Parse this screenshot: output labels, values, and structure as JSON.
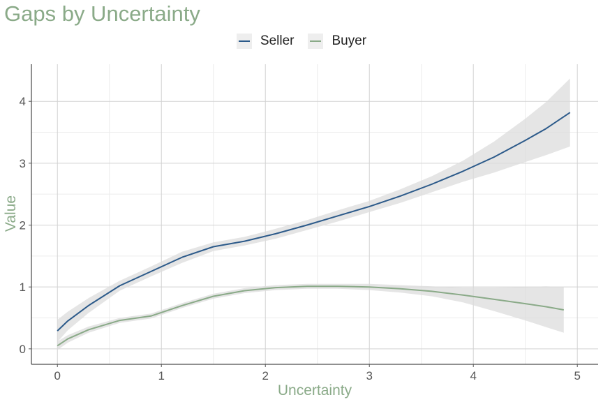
{
  "chart_data": {
    "type": "line",
    "title": "Gaps by Uncertainty",
    "xlabel": "Uncertainty",
    "ylabel": "Value",
    "xlim": [
      -0.25,
      5.2
    ],
    "ylim": [
      -0.25,
      4.6
    ],
    "xticks": [
      0,
      1,
      2,
      3,
      4,
      5
    ],
    "yticks": [
      0,
      1,
      2,
      3,
      4
    ],
    "grid": true,
    "legend_position": "top-center",
    "colors": {
      "title": "#8aaa88",
      "axis_title": "#8aaa88",
      "ribbon": "#dcdcdc"
    },
    "series": [
      {
        "name": "Seller",
        "color": "#2c5a8a",
        "x": [
          0.0,
          0.1,
          0.3,
          0.6,
          0.9,
          1.2,
          1.5,
          1.8,
          2.1,
          2.4,
          2.7,
          3.0,
          3.3,
          3.6,
          3.9,
          4.2,
          4.5,
          4.7,
          4.93
        ],
        "y": [
          0.29,
          0.45,
          0.7,
          1.02,
          1.25,
          1.48,
          1.65,
          1.74,
          1.86,
          2.0,
          2.15,
          2.3,
          2.47,
          2.66,
          2.87,
          3.1,
          3.37,
          3.56,
          3.82
        ],
        "lower": [
          0.11,
          0.3,
          0.58,
          0.94,
          1.17,
          1.39,
          1.58,
          1.67,
          1.78,
          1.92,
          2.06,
          2.21,
          2.36,
          2.53,
          2.7,
          2.85,
          3.02,
          3.13,
          3.27
        ],
        "upper": [
          0.47,
          0.6,
          0.82,
          1.1,
          1.33,
          1.57,
          1.72,
          1.81,
          1.94,
          2.08,
          2.24,
          2.39,
          2.58,
          2.79,
          3.04,
          3.35,
          3.72,
          3.99,
          4.37
        ]
      },
      {
        "name": "Buyer",
        "color": "#8aaa88",
        "x": [
          0.0,
          0.1,
          0.3,
          0.6,
          0.9,
          1.2,
          1.5,
          1.8,
          2.1,
          2.4,
          2.7,
          3.0,
          3.3,
          3.6,
          3.9,
          4.2,
          4.5,
          4.7,
          4.87
        ],
        "y": [
          0.05,
          0.16,
          0.31,
          0.46,
          0.53,
          0.7,
          0.85,
          0.94,
          0.99,
          1.01,
          1.01,
          1.0,
          0.97,
          0.93,
          0.87,
          0.8,
          0.73,
          0.68,
          0.63
        ],
        "lower": [
          -0.02,
          0.1,
          0.26,
          0.42,
          0.49,
          0.66,
          0.81,
          0.9,
          0.95,
          0.97,
          0.97,
          0.95,
          0.91,
          0.85,
          0.75,
          0.61,
          0.46,
          0.35,
          0.26
        ],
        "upper": [
          0.12,
          0.22,
          0.36,
          0.5,
          0.57,
          0.74,
          0.89,
          0.98,
          1.03,
          1.05,
          1.05,
          1.05,
          1.03,
          1.01,
          0.99,
          0.99,
          1.0,
          1.01,
          1.0
        ]
      }
    ]
  }
}
